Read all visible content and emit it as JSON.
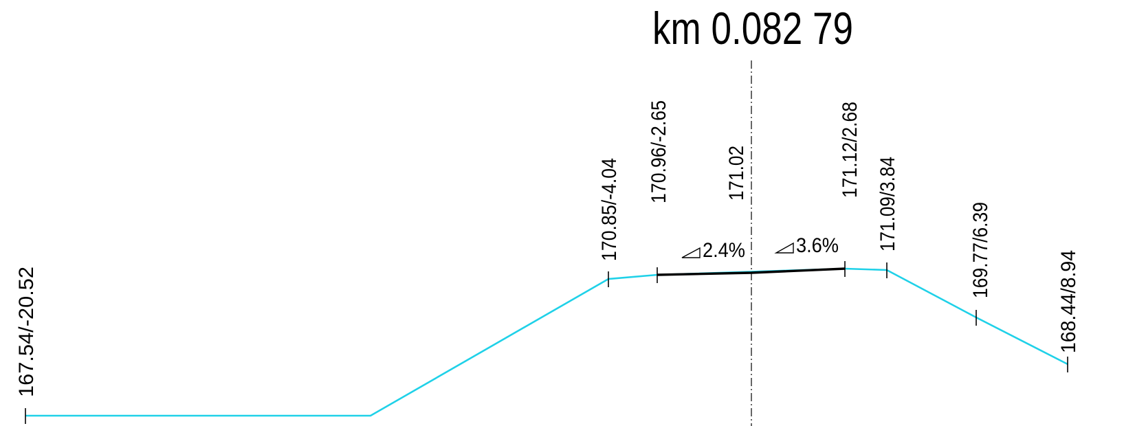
{
  "station": {
    "title": "km 0.082 79"
  },
  "colors": {
    "terrain": "#1fd1e8",
    "road": "#000000",
    "background": "#ffffff"
  },
  "points": [
    {
      "label": "167.54/-20.52",
      "elevation": 167.54,
      "offset": -20.52
    },
    {
      "label": "170.85/-4.04",
      "elevation": 170.85,
      "offset": -4.04
    },
    {
      "label": "170.96/-2.65",
      "elevation": 170.96,
      "offset": -2.65
    },
    {
      "label": "171.02",
      "elevation": 171.02,
      "offset": 0
    },
    {
      "label": "171.12/2.68",
      "elevation": 171.12,
      "offset": 2.68
    },
    {
      "label": "171.09/3.84",
      "elevation": 171.09,
      "offset": 3.84
    },
    {
      "label": "169.77/6.39",
      "elevation": 169.77,
      "offset": 6.39
    },
    {
      "label": "168.44/8.94",
      "elevation": 168.44,
      "offset": 8.94
    }
  ],
  "slopes": [
    {
      "icon": "slope-triangle-icon",
      "label": "2.4%"
    },
    {
      "icon": "slope-triangle-icon",
      "label": "3.6%"
    }
  ]
}
